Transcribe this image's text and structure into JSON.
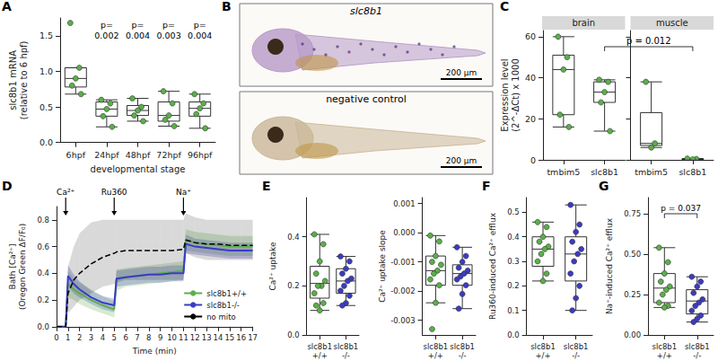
{
  "chart_data": [
    {
      "type": "boxplot",
      "panel_label": "A",
      "xlabel": "developmental stage",
      "ylabel": "slc8b1 mRNA\n(relative to 6 hpf)",
      "categories": [
        "6hpf",
        "24hpf",
        "48hpf",
        "72hpf",
        "96hpf"
      ],
      "boxes": [
        [
          0.68,
          0.78,
          0.9,
          1.05,
          1.05
        ],
        [
          0.22,
          0.37,
          0.47,
          0.57,
          0.6
        ],
        [
          0.3,
          0.38,
          0.45,
          0.52,
          0.62
        ],
        [
          0.23,
          0.3,
          0.38,
          0.57,
          0.72
        ],
        [
          0.2,
          0.37,
          0.48,
          0.57,
          0.68
        ]
      ],
      "points": [
        [
          1.68,
          1.05,
          0.9,
          0.8,
          0.68
        ],
        [
          0.6,
          0.55,
          0.47,
          0.37,
          0.22
        ],
        [
          0.62,
          0.5,
          0.45,
          0.38,
          0.3
        ],
        [
          0.72,
          0.55,
          0.38,
          0.32,
          0.23
        ],
        [
          0.68,
          0.55,
          0.48,
          0.4,
          0.2
        ]
      ],
      "color": "#5ab048",
      "ylim": [
        0,
        1.75
      ],
      "yticks": [
        {
          "value": 0,
          "label": "0.0"
        },
        0.5,
        {
          "value": 1,
          "label": "1.0"
        },
        1.5
      ],
      "annotations": [
        {
          "category": "24hpf",
          "text": "p= 0.002"
        },
        {
          "category": "48hpf",
          "text": "p= 0.004"
        },
        {
          "category": "72hpf",
          "text": "p= 0.003"
        },
        {
          "category": "96hpf",
          "text": "p= 0.004"
        }
      ]
    },
    {
      "type": "boxplot",
      "panel_label": "C",
      "ylabel": "Expression level\n(2^-ΔCt) x 1000",
      "facets": [
        {
          "title": "brain",
          "categories": [
            "tmbim5",
            "slc8b1"
          ],
          "boxes": [
            [
              16,
              22,
              44,
              51,
              60
            ],
            [
              14,
              28,
              33,
              38,
              39
            ]
          ],
          "points": [
            [
              60,
              50,
              44,
              22,
              16
            ],
            [
              39,
              38,
              33,
              28,
              14
            ]
          ]
        },
        {
          "title": "muscle",
          "categories": [
            "tmbim5",
            "slc8b1"
          ],
          "boxes": [
            [
              6,
              7,
              8,
              23,
              38
            ],
            [
              0.2,
              0.3,
              0.4,
              0.5,
              0.6
            ]
          ],
          "points": [
            [
              38,
              8,
              6
            ],
            [
              0.6,
              0.4,
              0.2
            ]
          ]
        }
      ],
      "color": "#5ab048",
      "ylim": [
        0,
        63
      ],
      "yticks": [
        0,
        20,
        40,
        60
      ],
      "brackets": [
        {
          "from": {
            "facet": "brain",
            "category": "slc8b1"
          },
          "to": {
            "facet": "muscle",
            "category": "slc8b1"
          },
          "text": "p = 0.012"
        }
      ]
    },
    {
      "type": "line",
      "panel_label": "D",
      "xlabel": "Time (min)",
      "ylabel": "Bath [Ca²⁺]\n(Oregon Green ΔF/F₀)",
      "x": [
        0,
        0.5,
        0.8,
        1,
        1.5,
        2,
        3,
        4,
        5,
        5.2,
        6,
        7,
        8,
        9,
        10,
        11,
        11.2,
        12,
        13,
        14,
        15,
        16,
        17
      ],
      "series": [
        {
          "name": "slc8b1+/+",
          "color": "#5ab048",
          "values": [
            0,
            0,
            0,
            0.32,
            0.28,
            0.25,
            0.2,
            0.16,
            0.13,
            0.35,
            0.37,
            0.38,
            0.39,
            0.4,
            0.41,
            0.42,
            0.65,
            0.63,
            0.62,
            0.61,
            0.6,
            0.6,
            0.6
          ],
          "lower": [
            0,
            0,
            0,
            0.22,
            0.2,
            0.17,
            0.13,
            0.1,
            0.07,
            0.27,
            0.3,
            0.31,
            0.32,
            0.33,
            0.34,
            0.35,
            0.57,
            0.56,
            0.55,
            0.54,
            0.53,
            0.53,
            0.53
          ],
          "upper": [
            0,
            0,
            0,
            0.42,
            0.36,
            0.33,
            0.28,
            0.23,
            0.19,
            0.43,
            0.44,
            0.45,
            0.46,
            0.47,
            0.48,
            0.49,
            0.73,
            0.71,
            0.7,
            0.69,
            0.68,
            0.68,
            0.68
          ]
        },
        {
          "name": "slc8b1-/-",
          "color": "#3b3bc4",
          "values": [
            0,
            0,
            0,
            0.38,
            0.32,
            0.28,
            0.22,
            0.18,
            0.16,
            0.36,
            0.37,
            0.38,
            0.39,
            0.39,
            0.4,
            0.4,
            0.62,
            0.6,
            0.59,
            0.58,
            0.57,
            0.57,
            0.57
          ],
          "lower": [
            0,
            0,
            0,
            0.3,
            0.25,
            0.22,
            0.17,
            0.13,
            0.11,
            0.3,
            0.31,
            0.32,
            0.33,
            0.33,
            0.34,
            0.34,
            0.55,
            0.54,
            0.53,
            0.52,
            0.51,
            0.51,
            0.51
          ],
          "upper": [
            0,
            0,
            0,
            0.46,
            0.39,
            0.34,
            0.27,
            0.23,
            0.21,
            0.42,
            0.43,
            0.44,
            0.45,
            0.45,
            0.46,
            0.46,
            0.69,
            0.66,
            0.65,
            0.64,
            0.63,
            0.63,
            0.63
          ]
        },
        {
          "name": "no mito",
          "color": "#000000",
          "line_style": "dashed",
          "values": [
            0,
            0,
            0,
            0.25,
            0.35,
            0.4,
            0.47,
            0.52,
            0.55,
            0.56,
            0.57,
            0.57,
            0.57,
            0.57,
            0.57,
            0.58,
            0.65,
            0.63,
            0.62,
            0.62,
            0.61,
            0.61,
            0.61
          ],
          "lower": [
            0,
            0,
            0,
            0.1,
            0.15,
            0.2,
            0.25,
            0.3,
            0.32,
            0.33,
            0.35,
            0.35,
            0.35,
            0.35,
            0.35,
            0.35,
            0.55,
            0.52,
            0.5,
            0.5,
            0.5,
            0.5,
            0.5
          ],
          "upper": [
            0,
            0,
            0,
            0.45,
            0.6,
            0.7,
            0.78,
            0.8,
            0.8,
            0.8,
            0.8,
            0.8,
            0.8,
            0.8,
            0.8,
            0.8,
            0.85,
            0.82,
            0.8,
            0.8,
            0.8,
            0.8,
            0.8
          ]
        }
      ],
      "xlim": [
        0,
        17
      ],
      "xticks": [
        0,
        1,
        2,
        3,
        4,
        5,
        6,
        7,
        8,
        9,
        10,
        11,
        12,
        13,
        14,
        15,
        16,
        17
      ],
      "ylim": [
        0,
        0.9
      ],
      "yticks": [
        {
          "value": 0,
          "label": "0.0"
        },
        0.2,
        0.4,
        0.6,
        0.8
      ],
      "annotations": [
        {
          "x": 0.8,
          "text": "Ca²⁺"
        },
        {
          "x": 5,
          "text": "Ru360"
        },
        {
          "x": 11,
          "text": "Na⁺"
        }
      ],
      "legend": "lower right"
    },
    {
      "type": "boxplot",
      "panel_label": "E",
      "ylabel": "Ca²⁺ uptake",
      "categories": [
        "slc8b1 +/+",
        "slc8b1 -/-"
      ],
      "colors": [
        "#5ab048",
        "#3b3bc4"
      ],
      "boxes": [
        [
          0.1,
          0.15,
          0.21,
          0.28,
          0.41
        ],
        [
          0.12,
          0.17,
          0.22,
          0.27,
          0.32
        ]
      ],
      "points": [
        [
          0.41,
          0.37,
          0.3,
          0.25,
          0.22,
          0.2,
          0.2,
          0.17,
          0.13,
          0.1,
          0.12
        ],
        [
          0.32,
          0.3,
          0.27,
          0.25,
          0.23,
          0.22,
          0.2,
          0.18,
          0.16,
          0.13,
          0.12
        ]
      ],
      "ylim": [
        0,
        0.56
      ],
      "yticks": [
        {
          "value": 0,
          "label": "0.0"
        },
        0.2,
        0.4
      ]
    },
    {
      "type": "boxplot",
      "ylabel": "Ca²⁺ uptake slope",
      "categories": [
        "slc8b1 +/+",
        "slc8b1 -/-"
      ],
      "colors": [
        "#5ab048",
        "#3b3bc4"
      ],
      "boxes": [
        [
          -0.0024,
          -0.0018,
          -0.0013,
          -0.0008,
          -0.0001
        ],
        [
          -0.0026,
          -0.0018,
          -0.0014,
          -0.0011,
          -0.0005
        ]
      ],
      "points": [
        [
          -0.0001,
          -0.0003,
          -0.0008,
          -0.001,
          -0.0011,
          -0.0013,
          -0.0014,
          -0.0016,
          -0.0018,
          -0.0024,
          -0.0033
        ],
        [
          -0.0005,
          -0.0008,
          -0.001,
          -0.0012,
          -0.0013,
          -0.0014,
          -0.0015,
          -0.0016,
          -0.0018,
          -0.0021,
          -0.0026
        ]
      ],
      "ylim": [
        -0.0035,
        0.0012
      ],
      "yticks": [
        -0.003,
        -0.002,
        -0.001,
        {
          "value": 0,
          "label": "0.000"
        },
        0.001
      ]
    },
    {
      "type": "boxplot",
      "panel_label": "F",
      "ylabel": "Ru360-induced Ca²⁺ efflux",
      "categories": [
        "slc8b1 +/+",
        "slc8b1 -/-"
      ],
      "colors": [
        "#5ab048",
        "#3b3bc4"
      ],
      "boxes": [
        [
          0.22,
          0.28,
          0.35,
          0.4,
          0.46
        ],
        [
          0.1,
          0.22,
          0.33,
          0.4,
          0.53
        ]
      ],
      "points": [
        [
          0.46,
          0.44,
          0.4,
          0.38,
          0.36,
          0.35,
          0.33,
          0.3,
          0.25,
          0.22
        ],
        [
          0.53,
          0.45,
          0.42,
          0.38,
          0.35,
          0.33,
          0.3,
          0.25,
          0.2,
          0.15,
          0.1
        ]
      ],
      "ylim": [
        0,
        0.56
      ],
      "yticks": [
        {
          "value": 0,
          "label": "0.0"
        },
        0.1,
        0.2,
        0.3,
        0.4,
        0.5
      ]
    },
    {
      "type": "boxplot",
      "panel_label": "G",
      "ylabel": "Na⁺-induced Ca²⁺ efflux",
      "categories": [
        "slc8b1 +/+",
        "slc8b1 -/-"
      ],
      "colors": [
        "#5ab048",
        "#3b3bc4"
      ],
      "boxes": [
        [
          0.17,
          0.2,
          0.29,
          0.38,
          0.54
        ],
        [
          0.08,
          0.13,
          0.21,
          0.28,
          0.36
        ]
      ],
      "points": [
        [
          0.54,
          0.45,
          0.38,
          0.33,
          0.3,
          0.28,
          0.25,
          0.2,
          0.18,
          0.17
        ],
        [
          0.36,
          0.33,
          0.3,
          0.26,
          0.22,
          0.2,
          0.18,
          0.15,
          0.12,
          0.1,
          0.08
        ]
      ],
      "ylim": [
        0,
        0.85
      ],
      "yticks": [
        {
          "value": 0,
          "label": "0.00"
        },
        0.25,
        {
          "value": 0.5,
          "label": "0.50"
        },
        0.75
      ],
      "brackets": [
        {
          "from": {
            "category": "slc8b1 +/+"
          },
          "to": {
            "category": "slc8b1 -/-"
          },
          "text": "p = 0.037"
        }
      ]
    }
  ],
  "image_panel": {
    "panel_label": "B",
    "images": [
      {
        "title": "slc8b1",
        "scale_bar": "200 µm",
        "color": "#b89ac8"
      },
      {
        "title": "negative control",
        "scale_bar": "200 µm",
        "color": "#cbb797"
      }
    ]
  }
}
